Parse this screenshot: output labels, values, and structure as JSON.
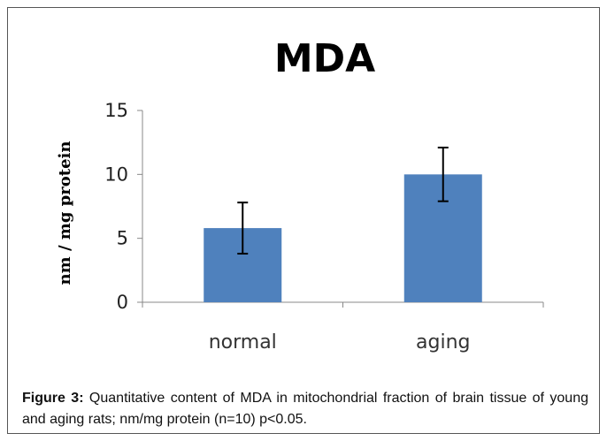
{
  "chart_data": {
    "type": "bar",
    "title": "MDA",
    "xlabel": "",
    "ylabel": "nm / mg protein",
    "categories": [
      "normal",
      "aging"
    ],
    "values": [
      5.8,
      10.0
    ],
    "error": [
      2.0,
      2.1
    ],
    "ylim": [
      0,
      15
    ],
    "yticks": [
      0,
      5,
      10,
      15
    ],
    "bar_color": "#4F81BD",
    "grid": false,
    "legend": "none"
  },
  "caption": {
    "label": "Figure 3:",
    "text": " Quantitative content of MDA in mitochondrial fraction of brain tissue of young and aging rats; nm/mg protein (n=10) p<0.05."
  }
}
